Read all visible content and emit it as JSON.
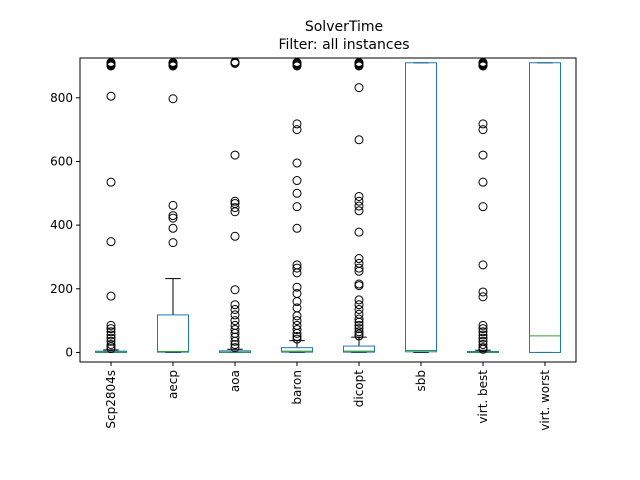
{
  "chart_data": {
    "type": "box",
    "title": "SolverTime",
    "subtitle": "Filter: all instances",
    "xlabel": "",
    "ylabel": "",
    "ylim": [
      -30,
      925
    ],
    "yticks": [
      0,
      200,
      400,
      600,
      800
    ],
    "grid": false,
    "colors": {
      "box": "#1f77b4",
      "median": "#2ca02c",
      "whisker": "#000000",
      "flier": "#000000"
    },
    "categories": [
      "Scp2804s",
      "aecp",
      "aoa",
      "baron",
      "dicopt",
      "sbb",
      "virt. best",
      "virt. worst"
    ],
    "boxes": [
      {
        "q1": 0,
        "median": 1,
        "q3": 4,
        "whislo": 0,
        "whishi": 8,
        "fliers": [
          911,
          909,
          906,
          904,
          902,
          900,
          805,
          535,
          348,
          177,
          85,
          75,
          65,
          55,
          45,
          35,
          25,
          18,
          12
        ]
      },
      {
        "q1": 1,
        "median": 3,
        "q3": 118,
        "whislo": 0,
        "whishi": 232,
        "fliers": [
          911,
          909,
          906,
          904,
          902,
          900,
          797,
          462,
          430,
          422,
          390,
          345
        ]
      },
      {
        "q1": 0,
        "median": 1,
        "q3": 5,
        "whislo": 0,
        "whishi": 10,
        "fliers": [
          913,
          910,
          908,
          620,
          475,
          468,
          455,
          442,
          365,
          197,
          150,
          135,
          118,
          100,
          85,
          72,
          60,
          48,
          35,
          25,
          15
        ]
      },
      {
        "q1": 1,
        "median": 4,
        "q3": 15,
        "whislo": 0,
        "whishi": 37,
        "fliers": [
          911,
          909,
          906,
          903,
          900,
          718,
          700,
          595,
          540,
          500,
          458,
          390,
          275,
          265,
          250,
          205,
          185,
          160,
          140,
          115,
          100,
          85,
          72,
          60,
          50,
          42
        ]
      },
      {
        "q1": 1,
        "median": 4,
        "q3": 20,
        "whislo": 0,
        "whishi": 48,
        "fliers": [
          911,
          909,
          906,
          903,
          900,
          832,
          668,
          490,
          475,
          460,
          445,
          378,
          295,
          280,
          265,
          255,
          215,
          210,
          165,
          150,
          135,
          120,
          105,
          95,
          85,
          75,
          65,
          58,
          52
        ]
      },
      {
        "q1": 2,
        "median": 6,
        "q3": 910,
        "whislo": 0,
        "whishi": 910,
        "fliers": []
      },
      {
        "q1": 0,
        "median": 1,
        "q3": 3,
        "whislo": 0,
        "whishi": 7,
        "fliers": [
          911,
          909,
          906,
          904,
          902,
          900,
          718,
          700,
          620,
          535,
          458,
          275,
          190,
          175,
          85,
          75,
          65,
          55,
          45,
          35,
          25,
          15,
          10
        ]
      },
      {
        "q1": 0,
        "median": 52,
        "q3": 910,
        "whislo": 0,
        "whishi": 910,
        "fliers": []
      }
    ]
  }
}
